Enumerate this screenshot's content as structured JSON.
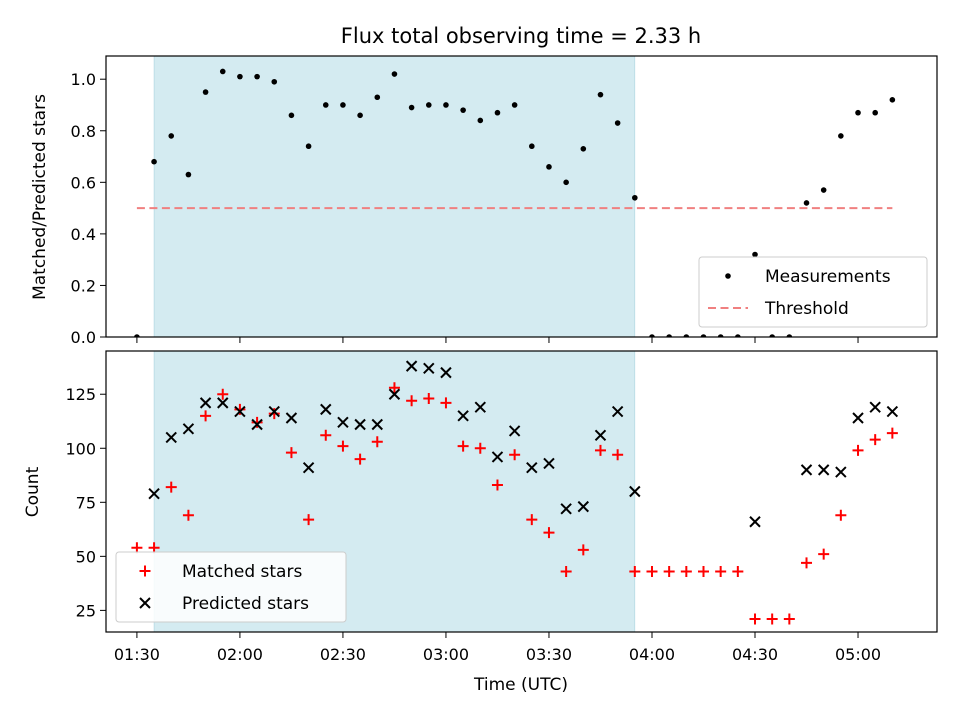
{
  "figure": {
    "title": "Flux total observing time = 2.33 h",
    "xlabel": "Time (UTC)",
    "x_tick_labels": [
      "01:30",
      "02:00",
      "02:30",
      "03:00",
      "03:30",
      "04:00",
      "04:30",
      "05:00"
    ],
    "x_tick_minutes": [
      90,
      120,
      150,
      180,
      210,
      240,
      270,
      300
    ],
    "xlim_minutes": [
      81,
      323
    ],
    "shaded_span_minutes": [
      95,
      235
    ],
    "shade_color": "#d4ebf1"
  },
  "chart_data": [
    {
      "type": "scatter",
      "ylabel": "Matched/Predicted stars",
      "ylim": [
        0,
        1.09
      ],
      "y_ticks": [
        0.0,
        0.2,
        0.4,
        0.6,
        0.8,
        1.0
      ],
      "y_tick_labels": [
        "0.0",
        "0.2",
        "0.4",
        "0.6",
        "0.8",
        "1.0"
      ],
      "legend_position": "lower-right",
      "series": [
        {
          "name": "Measurements",
          "marker": "dot",
          "color": "#000000",
          "x_minutes": [
            90,
            95,
            100,
            105,
            110,
            115,
            120,
            125,
            130,
            135,
            140,
            145,
            150,
            155,
            160,
            165,
            170,
            175,
            180,
            185,
            190,
            195,
            200,
            205,
            210,
            215,
            220,
            225,
            230,
            235,
            240,
            245,
            250,
            255,
            260,
            265,
            270,
            275,
            280,
            285,
            290,
            295,
            300,
            305,
            310
          ],
          "y": [
            0.0,
            0.68,
            0.78,
            0.63,
            0.95,
            1.03,
            1.01,
            1.01,
            0.99,
            0.86,
            0.74,
            0.9,
            0.9,
            0.86,
            0.93,
            1.02,
            0.89,
            0.9,
            0.9,
            0.88,
            0.84,
            0.87,
            0.9,
            0.74,
            0.66,
            0.6,
            0.73,
            0.94,
            0.83,
            0.54,
            0.0,
            0.0,
            0.0,
            0.0,
            0.0,
            0.0,
            0.32,
            0.0,
            0.0,
            0.52,
            0.57,
            0.78,
            0.87,
            0.87,
            0.92
          ]
        },
        {
          "name": "Threshold",
          "line_style": "dashed",
          "color": "#f08080",
          "x_minutes": [
            90,
            310
          ],
          "y": [
            0.5,
            0.5
          ]
        }
      ]
    },
    {
      "type": "scatter",
      "ylabel": "Count",
      "ylim": [
        15,
        145
      ],
      "y_ticks": [
        25,
        50,
        75,
        100,
        125
      ],
      "y_tick_labels": [
        "25",
        "50",
        "75",
        "100",
        "125"
      ],
      "legend_position": "lower-left",
      "series": [
        {
          "name": "Matched stars",
          "marker": "plus",
          "color": "#ff0000",
          "x_minutes": [
            90,
            95,
            100,
            105,
            110,
            115,
            120,
            125,
            130,
            135,
            140,
            145,
            150,
            155,
            160,
            165,
            170,
            175,
            180,
            185,
            190,
            195,
            200,
            205,
            210,
            215,
            220,
            225,
            230,
            235,
            240,
            245,
            250,
            255,
            260,
            265,
            270,
            275,
            280,
            285,
            290,
            295,
            300,
            305,
            310
          ],
          "y": [
            54,
            54,
            82,
            69,
            115,
            125,
            118,
            112,
            116,
            98,
            67,
            106,
            101,
            95,
            103,
            128,
            122,
            123,
            121,
            101,
            100,
            83,
            97,
            67,
            61,
            43,
            53,
            99,
            97,
            43,
            43,
            43,
            43,
            43,
            43,
            43,
            21,
            21,
            21,
            47,
            51,
            69,
            99,
            104,
            107
          ]
        },
        {
          "name": "Predicted stars",
          "marker": "x",
          "color": "#000000",
          "x_minutes": [
            95,
            100,
            105,
            110,
            115,
            120,
            125,
            130,
            135,
            140,
            145,
            150,
            155,
            160,
            165,
            170,
            175,
            180,
            185,
            190,
            195,
            200,
            205,
            210,
            215,
            220,
            225,
            230,
            235,
            270,
            285,
            290,
            295,
            300,
            305,
            310
          ],
          "y": [
            79,
            105,
            109,
            121,
            121,
            117,
            111,
            117,
            114,
            91,
            118,
            112,
            111,
            111,
            125,
            138,
            137,
            135,
            115,
            119,
            96,
            108,
            91,
            93,
            72,
            73,
            106,
            117,
            80,
            66,
            90,
            90,
            89,
            114,
            119,
            117
          ]
        }
      ]
    }
  ]
}
